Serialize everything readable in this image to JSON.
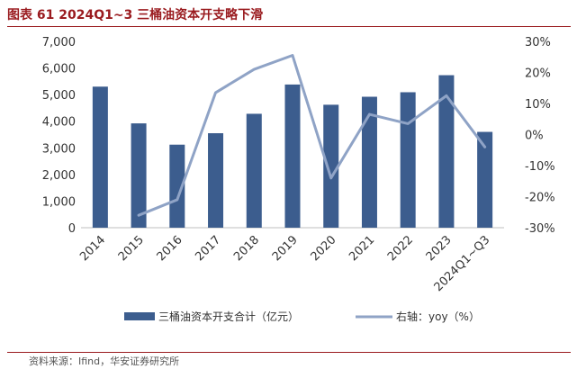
{
  "title": "图表 61 2024Q1~3 三桶油资本开支略下滑",
  "source": "资料来源：Ifind，华安证券研究所",
  "colors": {
    "title": "#9a1b1f",
    "bar": "#3c5d8e",
    "line": "#8fa3c6",
    "axis": "#bfbfbf"
  },
  "chart_data": {
    "type": "bar",
    "categories": [
      "2014",
      "2015",
      "2016",
      "2017",
      "2018",
      "2019",
      "2020",
      "2021",
      "2022",
      "2023",
      "2024Q1~Q3"
    ],
    "series": [
      {
        "name": "三桶油资本开支合计（亿元）",
        "type": "bar",
        "axis": "left",
        "values": [
          5300,
          3920,
          3120,
          3550,
          4280,
          5380,
          4620,
          4920,
          5090,
          5730,
          3600
        ]
      },
      {
        "name": "右轴：yoy（%）",
        "type": "line",
        "axis": "right",
        "values": [
          null,
          -26,
          -21,
          13.5,
          21,
          25.5,
          -14,
          6.5,
          3.5,
          12.5,
          -4
        ]
      }
    ],
    "y_left": {
      "min": 0,
      "max": 7000,
      "ticks": [
        0,
        1000,
        2000,
        3000,
        4000,
        5000,
        6000,
        7000
      ],
      "tick_labels": [
        "0",
        "1,000",
        "2,000",
        "3,000",
        "4,000",
        "5,000",
        "6,000",
        "7,000"
      ]
    },
    "y_right": {
      "min": -30,
      "max": 30,
      "ticks": [
        -30,
        -20,
        -10,
        0,
        10,
        20,
        30
      ],
      "tick_labels": [
        "-30%",
        "-20%",
        "-10%",
        "0%",
        "10%",
        "20%",
        "30%"
      ]
    },
    "legend_position": "bottom",
    "grid": false
  }
}
